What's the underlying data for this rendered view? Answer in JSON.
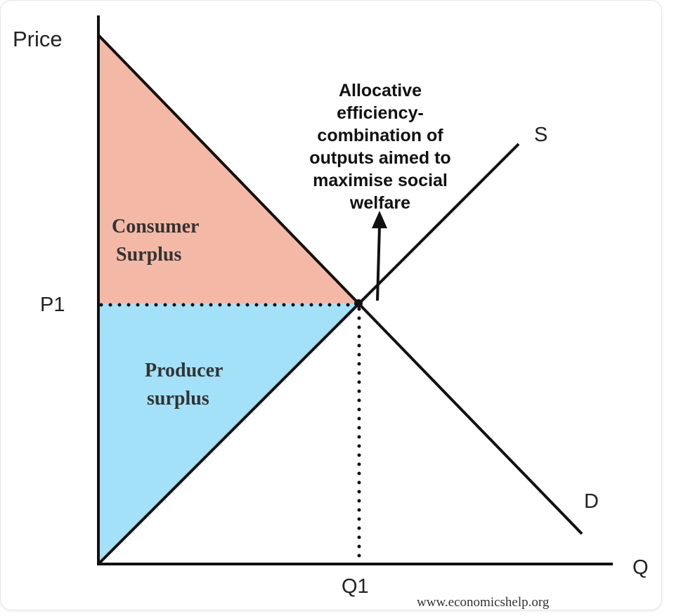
{
  "axes": {
    "y_label": "Price",
    "x_label": "Q",
    "price_level": "P1",
    "quantity_level": "Q1"
  },
  "curves": {
    "supply": "S",
    "demand": "D"
  },
  "regions": {
    "consumer_surplus": [
      "Consumer",
      "Surplus"
    ],
    "producer_surplus": [
      "Producer",
      "surplus"
    ]
  },
  "annotation": {
    "lines": [
      "Allocative",
      "efficiency-",
      "combination of",
      "outputs aimed to",
      "maximise social",
      "welfare"
    ]
  },
  "source": "www.economicshelp.org"
}
